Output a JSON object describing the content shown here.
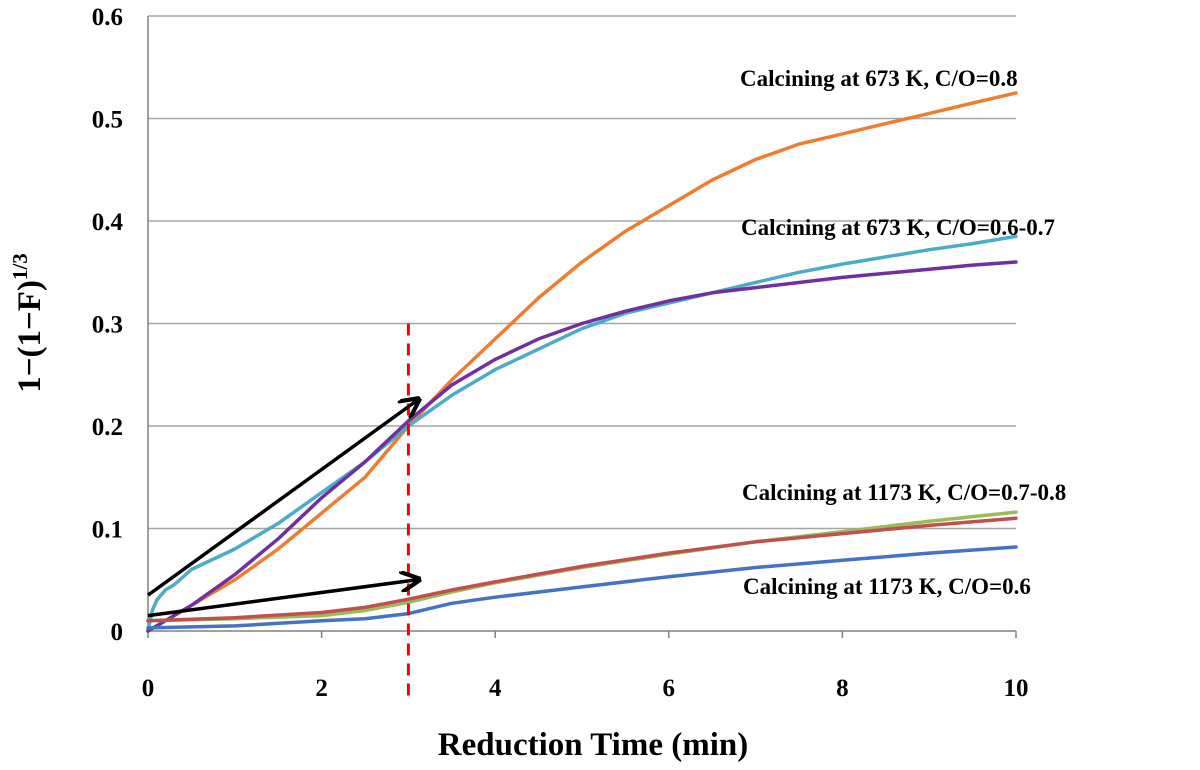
{
  "chart_data": {
    "type": "line",
    "xlabel": "Reduction Time (min)",
    "ylabel_main": "1−(1−F)",
    "ylabel_sup": "1/3",
    "xlim": [
      0,
      10
    ],
    "ylim": [
      0,
      0.6
    ],
    "xticks": [
      0,
      2,
      4,
      6,
      8,
      10
    ],
    "yticks": [
      0,
      0.1,
      0.2,
      0.3,
      0.4,
      0.5,
      0.6
    ],
    "grid": true,
    "series": [
      {
        "color": "#ed7d31",
        "x": [
          0,
          0.5,
          1,
          1.5,
          2,
          2.5,
          3,
          3.5,
          4,
          4.5,
          5,
          5.5,
          6,
          6.5,
          7,
          7.5,
          8,
          8.5,
          9,
          9.5,
          10
        ],
        "y": [
          0,
          0.025,
          0.05,
          0.08,
          0.115,
          0.15,
          0.2,
          0.245,
          0.285,
          0.325,
          0.36,
          0.39,
          0.415,
          0.44,
          0.46,
          0.475,
          0.485,
          0.495,
          0.505,
          0.515,
          0.525
        ]
      },
      {
        "color": "#4bacc6",
        "x": [
          0,
          0.05,
          0.1,
          0.2,
          0.3,
          0.5,
          1,
          1.5,
          2,
          2.5,
          3,
          3.5,
          4,
          4.5,
          5,
          5.5,
          6,
          6.5,
          7,
          7.5,
          8,
          8.5,
          9,
          9.5,
          10
        ],
        "y": [
          0,
          0.02,
          0.03,
          0.04,
          0.045,
          0.06,
          0.08,
          0.105,
          0.135,
          0.165,
          0.2,
          0.23,
          0.255,
          0.275,
          0.295,
          0.31,
          0.32,
          0.33,
          0.34,
          0.35,
          0.358,
          0.365,
          0.372,
          0.378,
          0.385
        ]
      },
      {
        "color": "#7030a0",
        "x": [
          0,
          0.5,
          1,
          1.5,
          2,
          2.5,
          3,
          3.5,
          4,
          4.5,
          5,
          5.5,
          6,
          6.5,
          7,
          7.5,
          8,
          8.5,
          9,
          9.5,
          10
        ],
        "y": [
          0,
          0.025,
          0.055,
          0.09,
          0.13,
          0.165,
          0.205,
          0.24,
          0.265,
          0.285,
          0.3,
          0.312,
          0.322,
          0.33,
          0.335,
          0.34,
          0.345,
          0.349,
          0.353,
          0.357,
          0.36
        ]
      },
      {
        "color": "#9bbb59",
        "x": [
          0,
          1,
          2,
          2.5,
          3,
          3.5,
          4,
          5,
          6,
          7,
          8,
          9,
          10
        ],
        "y": [
          0.01,
          0.012,
          0.015,
          0.02,
          0.028,
          0.038,
          0.047,
          0.062,
          0.075,
          0.087,
          0.097,
          0.107,
          0.116
        ]
      },
      {
        "color": "#c0504d",
        "x": [
          0,
          1,
          2,
          2.5,
          3,
          3.5,
          4,
          5,
          6,
          7,
          8,
          9,
          10
        ],
        "y": [
          0.01,
          0.013,
          0.018,
          0.023,
          0.031,
          0.04,
          0.048,
          0.063,
          0.076,
          0.087,
          0.095,
          0.103,
          0.11
        ]
      },
      {
        "color": "#4472c4",
        "x": [
          0,
          1,
          2,
          2.5,
          3,
          3.5,
          4,
          5,
          6,
          7,
          8,
          9,
          10
        ],
        "y": [
          0.003,
          0.005,
          0.01,
          0.012,
          0.017,
          0.027,
          0.033,
          0.043,
          0.053,
          0.062,
          0.069,
          0.076,
          0.082
        ]
      }
    ],
    "vline": {
      "x": 3.0,
      "y_top": 0.3,
      "color": "#ff0000"
    },
    "arrows": [
      {
        "from": [
          0,
          0.035
        ],
        "to": [
          3.1,
          0.225
        ],
        "color": "#000000"
      },
      {
        "from": [
          0,
          0.015
        ],
        "to": [
          3.1,
          0.05
        ],
        "color": "#000000"
      }
    ],
    "annotations": [
      {
        "text": "Calcining at 673 K, C/O=0.8"
      },
      {
        "text": "Calcining at 673 K, C/O=0.6-0.7"
      },
      {
        "text": "Calcining at 1173 K, C/O=0.7-0.8"
      },
      {
        "text": "Calcining at 1173 K, C/O=0.6"
      }
    ]
  }
}
